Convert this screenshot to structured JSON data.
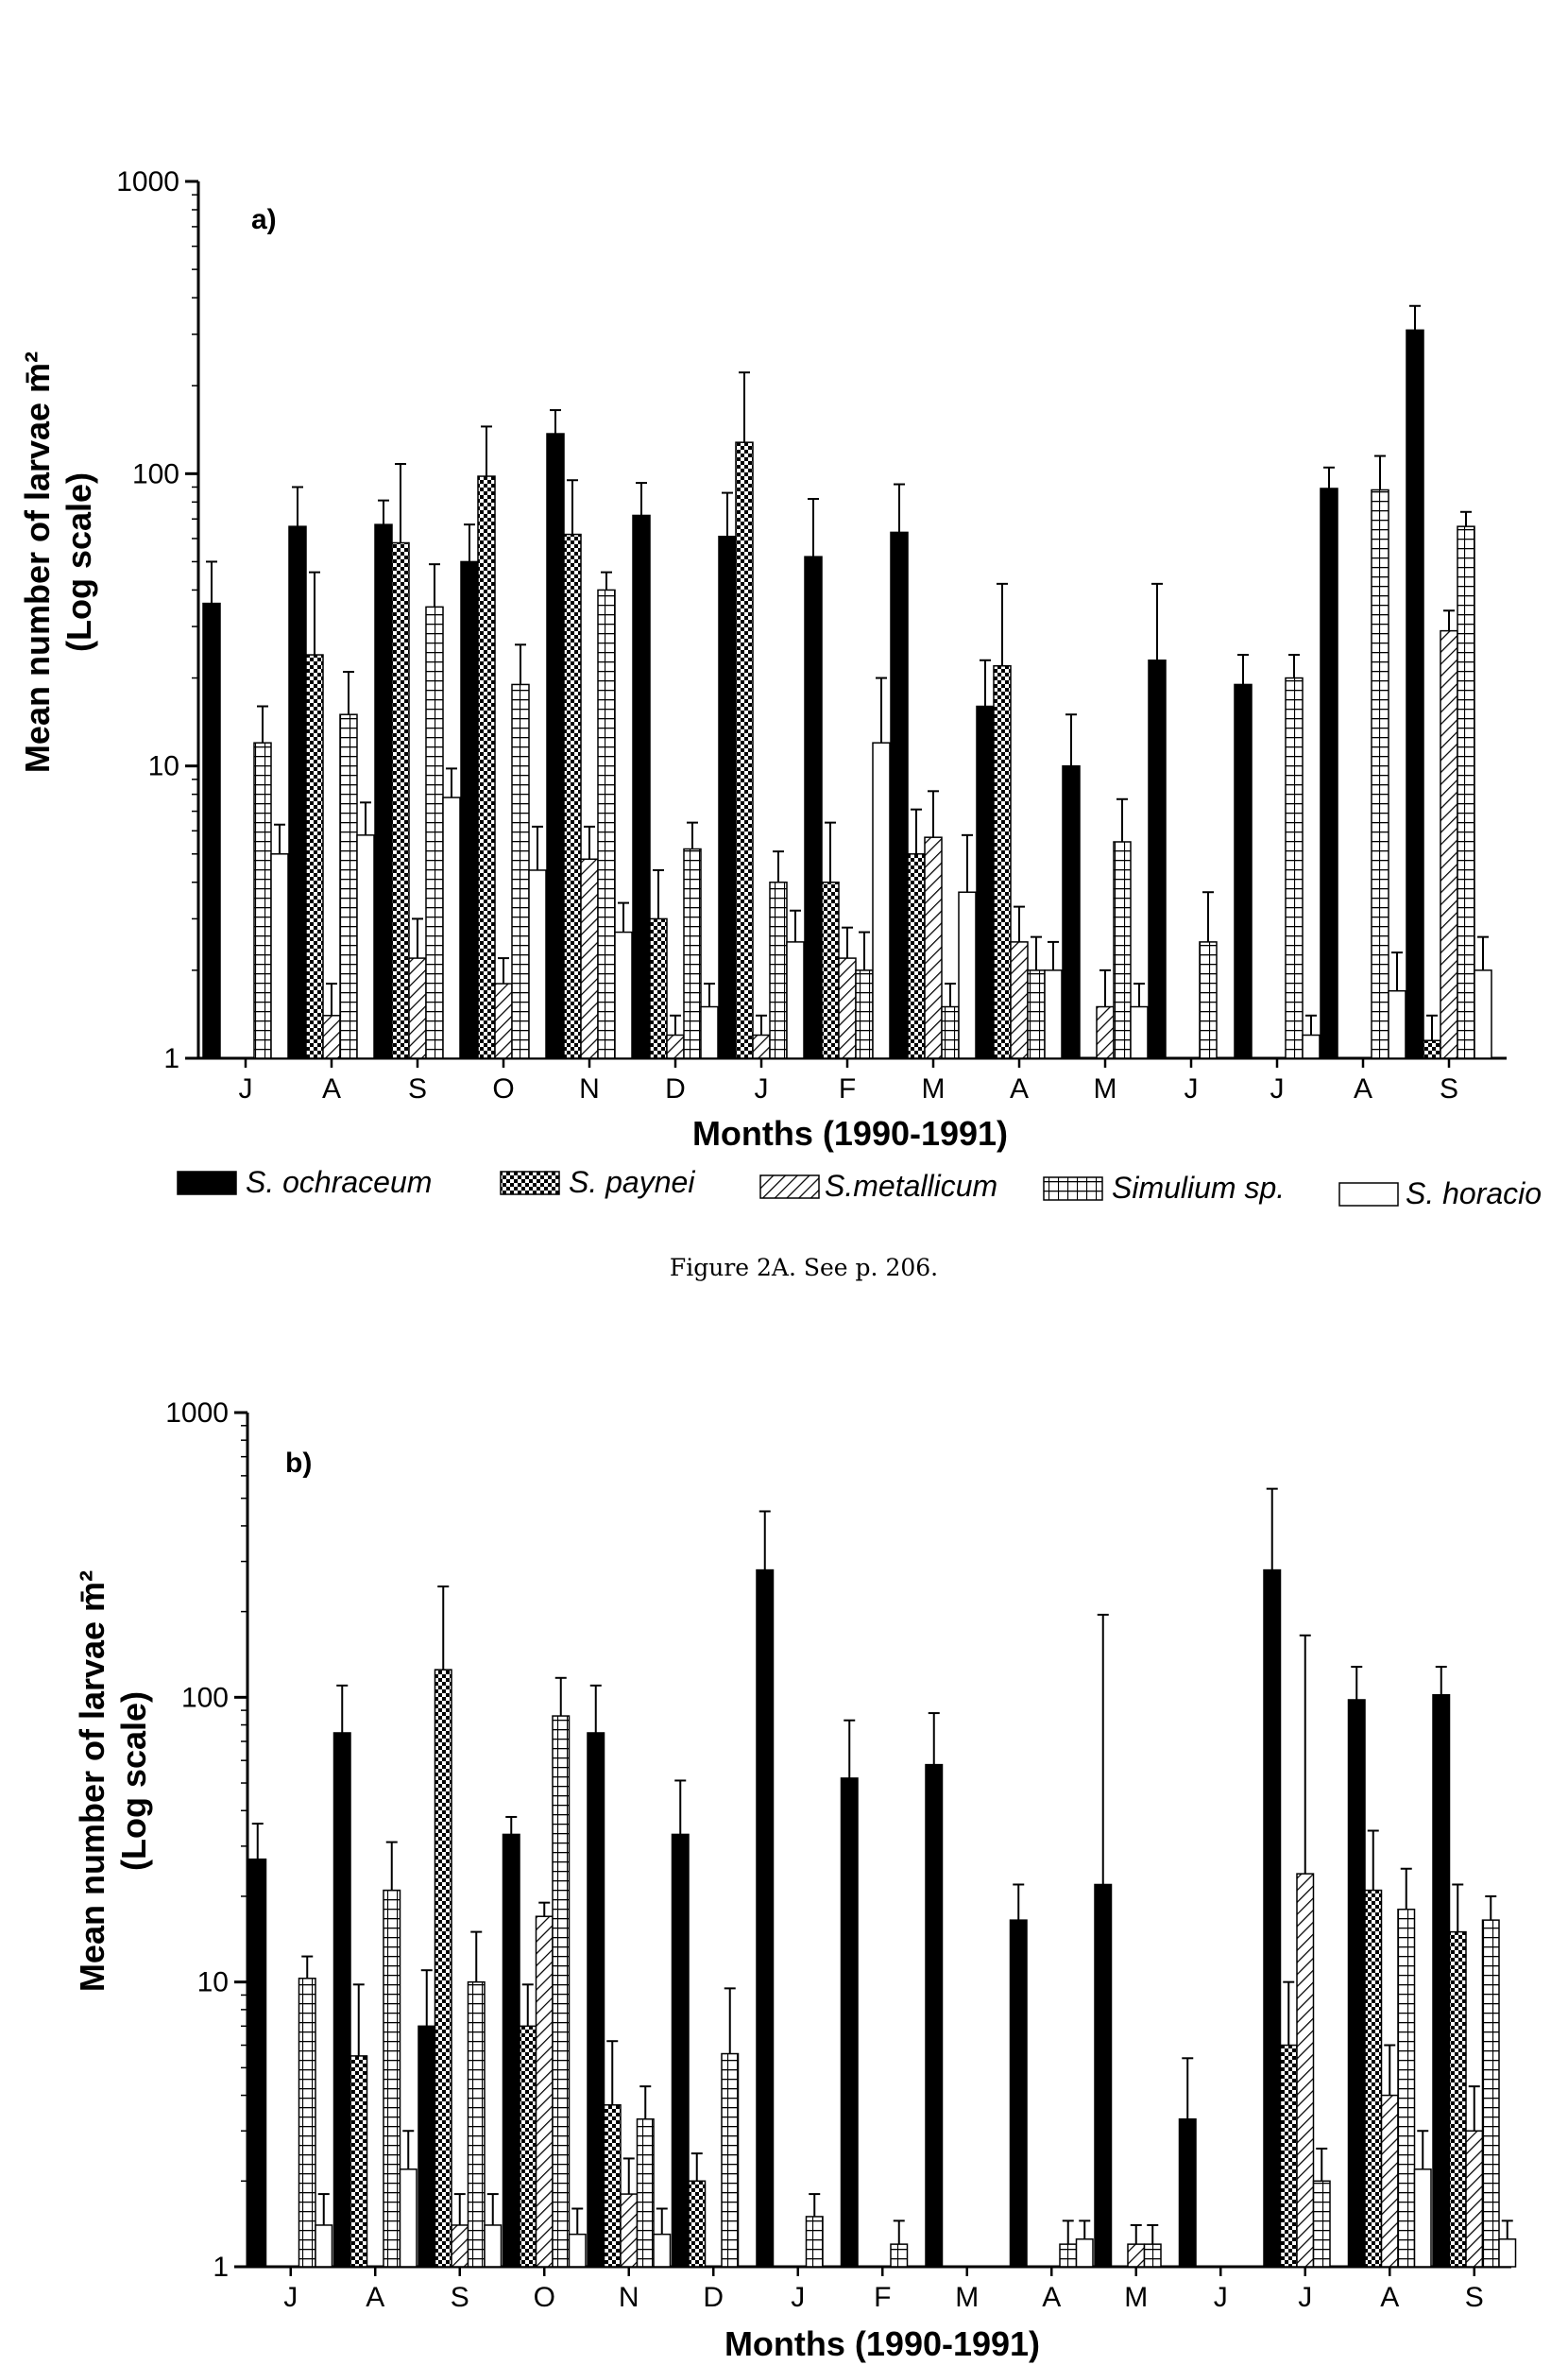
{
  "caption": "Figure 2A.  See p. 206.",
  "legend": [
    {
      "key": "och",
      "label": "S. ochraceum"
    },
    {
      "key": "pay",
      "label": "S. paynei"
    },
    {
      "key": "met",
      "label": "S.metallicum"
    },
    {
      "key": "sim",
      "label": "Simulium sp."
    },
    {
      "key": "hor",
      "label": "S. horacio"
    }
  ],
  "chart_data": [
    {
      "type": "bar",
      "scale": "log",
      "panel_label": "a)",
      "title": "",
      "xlabel": "Months (1990-1991)",
      "ylabel_line1": "Mean number of larvae m̄²",
      "ylabel_line2": "(Log scale)",
      "ylim": [
        1,
        1000
      ],
      "yticks": [
        "1",
        "10",
        "100",
        "1000"
      ],
      "categories": [
        "J",
        "A",
        "S",
        "O",
        "N",
        "D",
        "J",
        "F",
        "M",
        "A",
        "M",
        "J",
        "J",
        "A",
        "S"
      ],
      "series": [
        {
          "name": "S. ochraceum",
          "key": "och",
          "values": [
            36,
            66,
            67,
            50,
            137,
            72,
            61,
            52,
            63,
            16,
            10,
            23,
            19,
            89,
            310
          ],
          "errors": [
            50,
            90,
            81,
            67,
            165,
            93,
            86,
            82,
            92,
            23,
            15,
            42,
            24,
            105,
            375
          ]
        },
        {
          "name": "S. paynei",
          "key": "pay",
          "values": [
            null,
            24,
            58,
            98,
            62,
            3,
            128,
            4,
            5,
            22,
            null,
            null,
            null,
            null,
            1.15
          ],
          "errors": [
            null,
            46,
            108,
            145,
            95,
            4.4,
            222,
            6.4,
            7.1,
            42,
            null,
            null,
            null,
            null,
            1.4
          ]
        },
        {
          "name": "S.metallicum",
          "key": "met",
          "values": [
            null,
            1.4,
            2.2,
            1.8,
            4.8,
            1.2,
            1.2,
            2.2,
            5.7,
            2.5,
            1.5,
            null,
            null,
            null,
            29
          ],
          "errors": [
            null,
            1.8,
            3.0,
            2.2,
            6.2,
            1.4,
            1.4,
            2.8,
            8.2,
            3.3,
            2.0,
            null,
            null,
            null,
            34
          ]
        },
        {
          "name": "Simulium sp.",
          "key": "sim",
          "values": [
            12,
            15,
            35,
            19,
            40,
            5.2,
            4,
            2,
            1.5,
            2,
            5.5,
            2.5,
            20,
            88,
            66
          ],
          "errors": [
            16,
            21,
            49,
            26,
            46,
            6.4,
            5.1,
            2.7,
            1.8,
            2.6,
            7.7,
            3.7,
            24,
            115,
            74
          ]
        },
        {
          "name": "S. horacio",
          "key": "hor",
          "values": [
            5,
            5.8,
            7.8,
            4.4,
            2.7,
            1.5,
            2.5,
            12,
            3.7,
            2,
            1.5,
            null,
            1.2,
            1.7,
            2
          ],
          "errors": [
            6.3,
            7.5,
            9.8,
            6.2,
            3.4,
            1.8,
            3.2,
            20,
            5.8,
            2.5,
            1.8,
            null,
            1.4,
            2.3,
            2.6
          ]
        }
      ]
    },
    {
      "type": "bar",
      "scale": "log",
      "panel_label": "b)",
      "title": "",
      "xlabel": "Months (1990-1991)",
      "ylabel_line1": "Mean number of larvae m̄²",
      "ylabel_line2": "(Log scale)",
      "ylim": [
        1,
        1000
      ],
      "yticks": [
        "1",
        "10",
        "100",
        "1000"
      ],
      "categories": [
        "J",
        "A",
        "S",
        "O",
        "N",
        "D",
        "J",
        "F",
        "M",
        "A",
        "M",
        "J",
        "J",
        "A",
        "S"
      ],
      "series": [
        {
          "name": "S. ochraceum",
          "key": "och",
          "values": [
            27,
            75,
            7,
            33,
            75,
            33,
            280,
            52,
            58,
            16.5,
            22,
            3.3,
            280,
            98,
            102
          ],
          "errors": [
            36,
            110,
            11,
            38,
            110,
            51,
            450,
            83,
            88,
            22,
            195,
            5.4,
            540,
            128,
            128
          ]
        },
        {
          "name": "S. paynei",
          "key": "pay",
          "values": [
            null,
            5.5,
            125,
            7,
            3.7,
            2,
            null,
            null,
            null,
            null,
            null,
            null,
            6,
            21,
            15
          ],
          "errors": [
            null,
            9.8,
            245,
            9.8,
            6.2,
            2.5,
            null,
            null,
            null,
            null,
            null,
            null,
            10,
            34,
            22
          ]
        },
        {
          "name": "S.metallicum",
          "key": "met",
          "values": [
            null,
            null,
            1.4,
            17,
            1.8,
            null,
            null,
            null,
            null,
            null,
            1.2,
            null,
            24,
            4,
            3
          ],
          "errors": [
            null,
            null,
            1.8,
            19,
            2.4,
            null,
            null,
            null,
            null,
            null,
            1.4,
            null,
            165,
            6,
            4.3
          ]
        },
        {
          "name": "Simulium sp.",
          "key": "sim",
          "values": [
            10.3,
            21,
            10,
            86,
            3.3,
            5.6,
            1.5,
            1.2,
            null,
            1.2,
            1.2,
            null,
            2,
            18,
            16.5
          ],
          "errors": [
            12.3,
            31,
            15,
            117,
            4.3,
            9.5,
            1.8,
            1.45,
            null,
            1.45,
            1.4,
            null,
            2.6,
            25,
            20
          ]
        },
        {
          "name": "S. horacio",
          "key": "hor",
          "values": [
            1.4,
            2.2,
            1.4,
            1.3,
            1.3,
            null,
            null,
            null,
            null,
            1.25,
            null,
            null,
            null,
            2.2,
            1.25
          ],
          "errors": [
            1.8,
            3,
            1.8,
            1.6,
            1.6,
            null,
            null,
            null,
            null,
            1.45,
            null,
            null,
            null,
            3,
            1.45
          ]
        }
      ]
    }
  ]
}
